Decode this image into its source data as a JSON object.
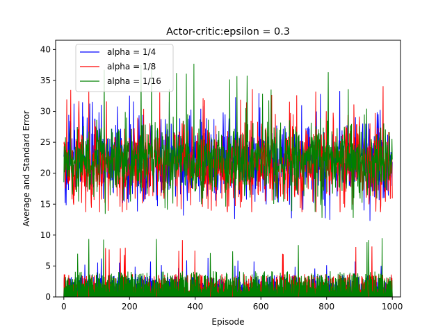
{
  "chart_data": {
    "type": "line",
    "title": "Actor-critic:epsilon = 0.3",
    "xlabel": "Episode",
    "ylabel": "Average and Standard Error",
    "xlim": [
      -25,
      1025
    ],
    "ylim": [
      0,
      41.5
    ],
    "xticks": [
      0,
      200,
      400,
      600,
      800,
      1000
    ],
    "yticks": [
      0,
      5,
      10,
      15,
      20,
      25,
      30,
      35,
      40
    ],
    "grid": false,
    "legend_position": "top-left",
    "series": [
      {
        "name": "alpha = 1/4",
        "color": "#0000ff",
        "average": {
          "mean": 22,
          "min": 12.3,
          "max": 33.3,
          "sd": 3.2
        },
        "std_error": {
          "mean": 2.2,
          "min": 0,
          "max": 6.5
        }
      },
      {
        "name": "alpha = 1/8",
        "color": "#ff0000",
        "average": {
          "mean": 21.5,
          "min": 13.7,
          "max": 34.3,
          "sd": 3.3
        },
        "std_error": {
          "mean": 2.3,
          "min": 0,
          "max": 9.3
        }
      },
      {
        "name": "alpha = 1/16",
        "color": "#008000",
        "average": {
          "mean": 22,
          "min": 12.8,
          "max": 39.8,
          "sd": 3.0
        },
        "std_error": {
          "mean": 2.6,
          "min": 0,
          "max": 9.9
        }
      }
    ],
    "episodes": {
      "start": 0,
      "end": 1000
    }
  }
}
